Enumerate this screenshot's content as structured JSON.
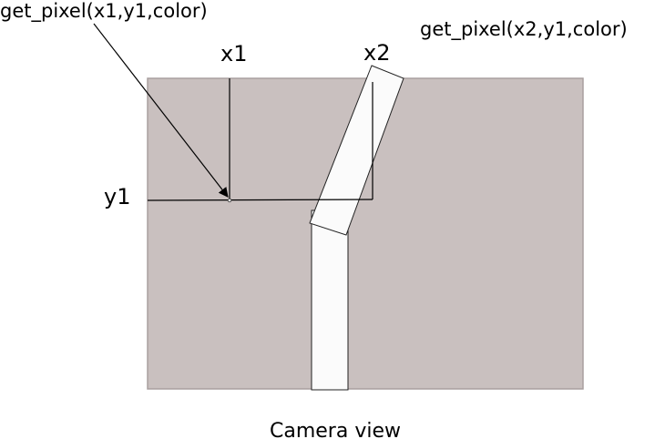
{
  "labels": {
    "call_left": "get_pixel(x1,y1,color)",
    "call_right": "get_pixel(x2,y1,color)",
    "x1": "x1",
    "x2": "x2",
    "y1": "y1",
    "caption": "Camera view"
  },
  "colors": {
    "camera_fill": "#c9c0bf",
    "camera_stroke": "#a99f9f",
    "strip_fill": "#fbfbfb",
    "line": "#000000"
  }
}
